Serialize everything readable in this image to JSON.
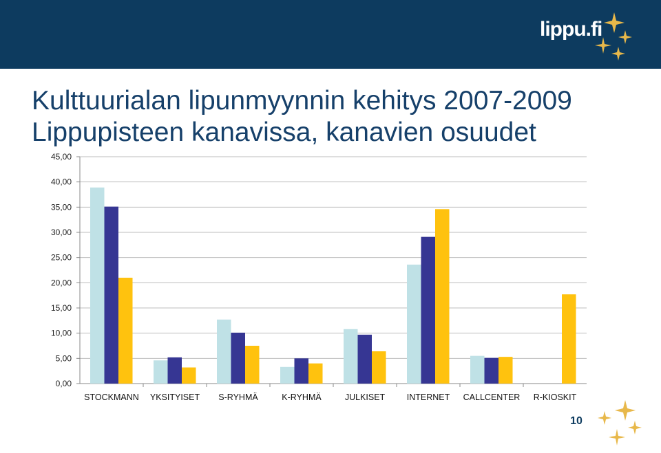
{
  "header": {
    "brand": "lippu.fi"
  },
  "title_line1": "Kulttuurialan lipunmyynnin kehitys 2007-2009",
  "title_line2": "Lippupisteen kanavissa, kanavien osuudet",
  "page_number": "10",
  "chart_data": {
    "type": "bar",
    "categories": [
      "STOCKMANN",
      "YKSITYISET",
      "S-RYHMÄ",
      "K-RYHMÄ",
      "JULKISET",
      "INTERNET",
      "CALLCENTER",
      "R-KIOSKIT"
    ],
    "series": [
      {
        "color": "#bfe1e6",
        "values": [
          38.9,
          4.6,
          12.7,
          3.3,
          10.8,
          23.6,
          5.5,
          null
        ]
      },
      {
        "color": "#363693",
        "values": [
          35.1,
          5.2,
          10.1,
          5.0,
          9.7,
          29.1,
          5.1,
          null
        ]
      },
      {
        "color": "#ffc20e",
        "values": [
          21.0,
          3.2,
          7.5,
          4.0,
          6.4,
          34.6,
          5.3,
          17.7
        ]
      }
    ],
    "ylim": [
      0,
      45
    ],
    "yticks": [
      "0,00",
      "5,00",
      "10,00",
      "15,00",
      "20,00",
      "25,00",
      "30,00",
      "35,00",
      "40,00",
      "45,00"
    ],
    "ytick_values": [
      0,
      5,
      10,
      15,
      20,
      25,
      30,
      35,
      40,
      45
    ],
    "grid": true,
    "legend": "none"
  }
}
